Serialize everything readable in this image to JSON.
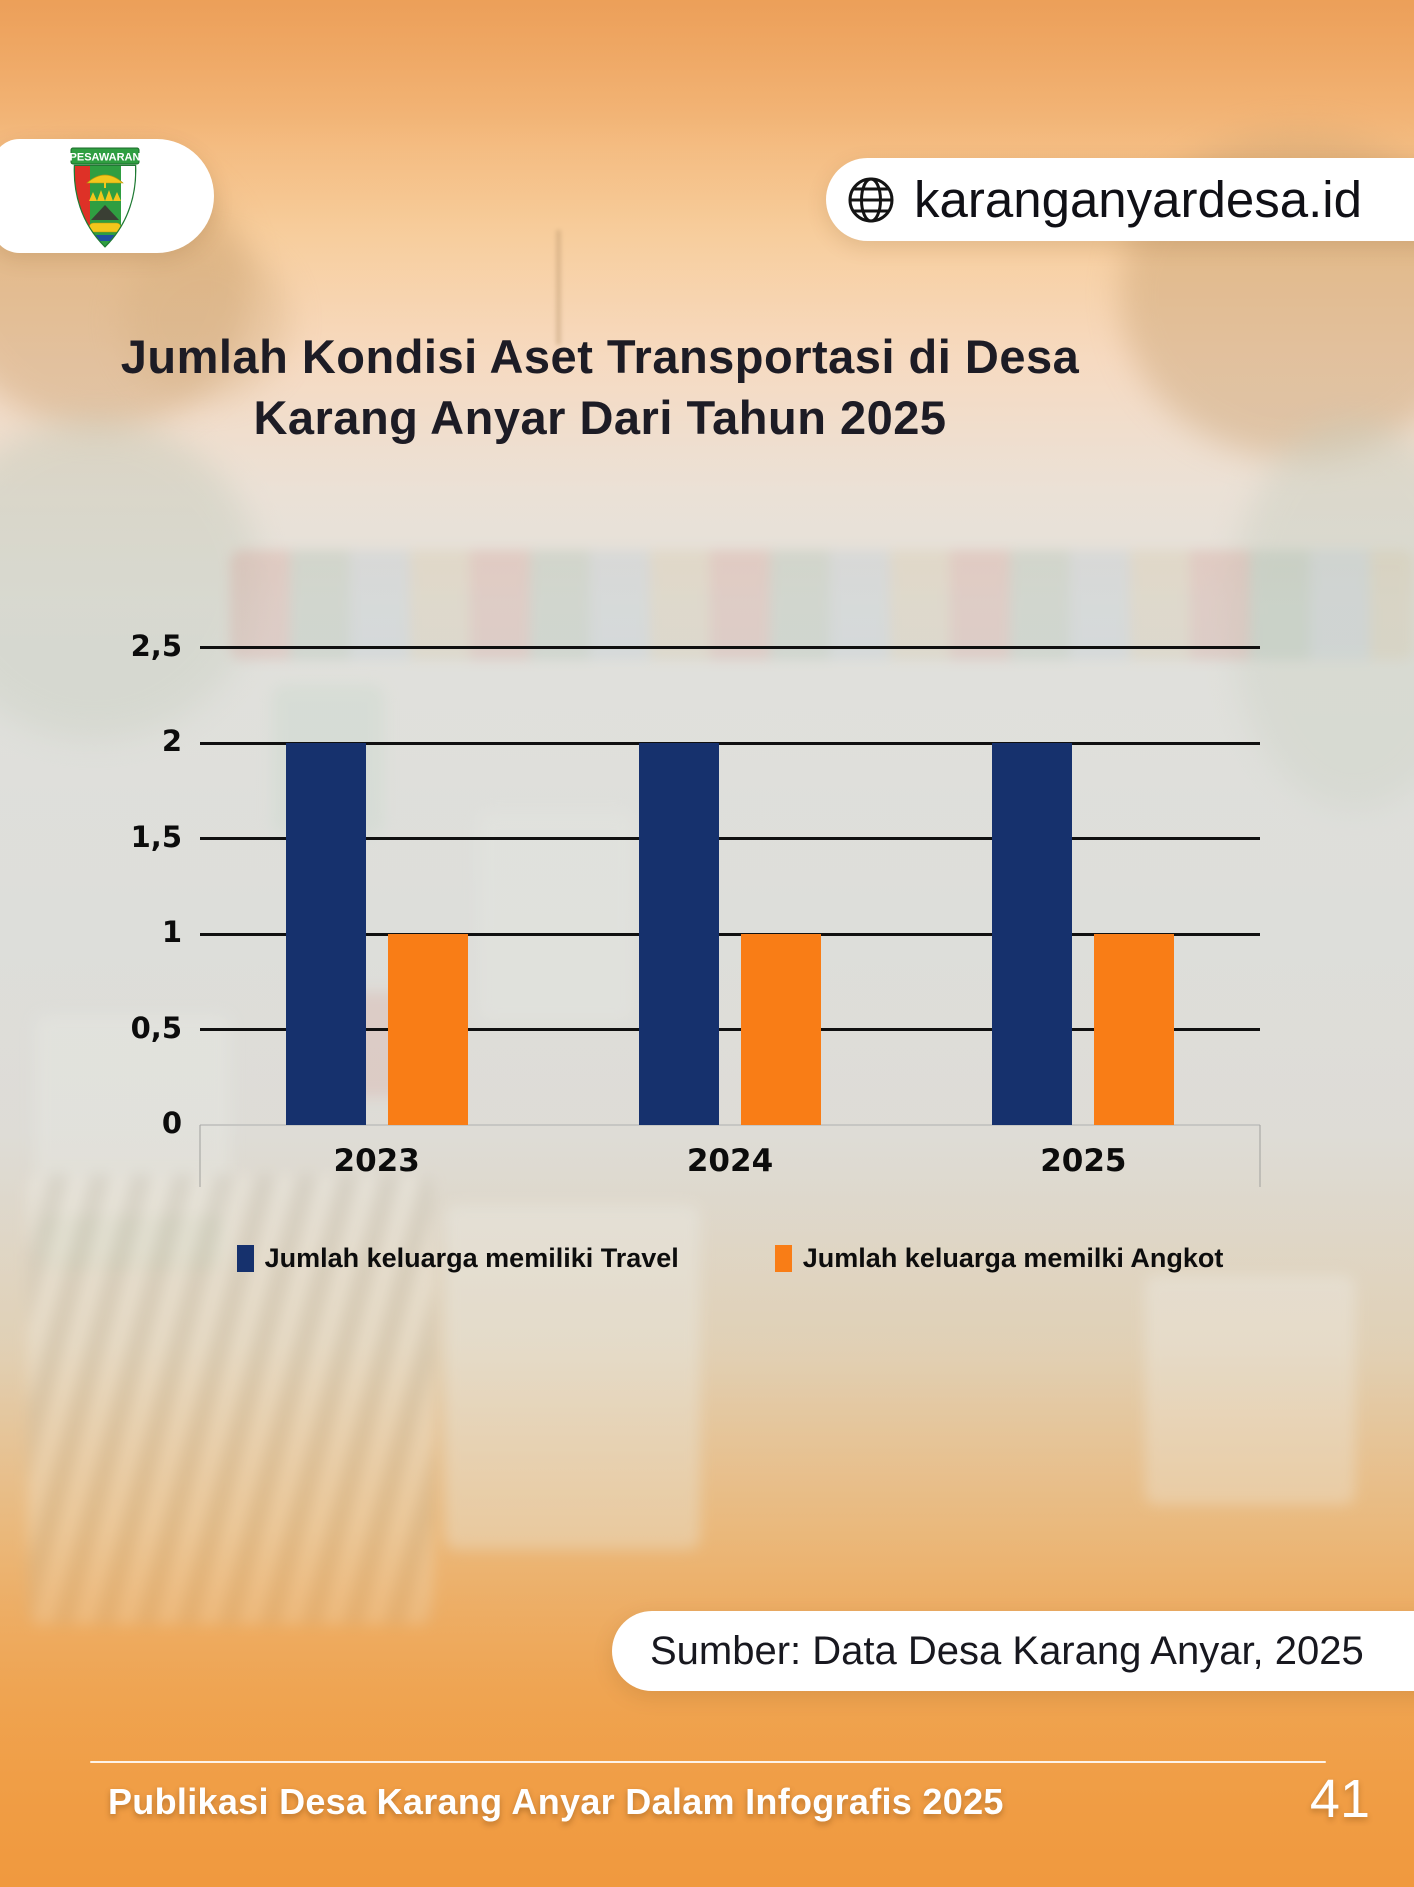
{
  "page": {
    "website": "karanganyardesa.id",
    "logo_text": "PESAWARAN",
    "title_line1": "Jumlah Kondisi Aset Transportasi di Desa",
    "title_line2": "Karang Anyar Dari Tahun 2025",
    "source": "Sumber: Data Desa Karang Anyar, 2025",
    "footer": "Publikasi Desa Karang Anyar Dalam Infografis 2025",
    "page_number": "41"
  },
  "icons": {
    "globe": "wireframe-globe glyph drawn as SVG",
    "logo": "Pesawaran regency crest (shield with umbrella, crown, mountain)"
  },
  "colors": {
    "travel_bar": "#16316d",
    "angkot_bar": "#f97d16",
    "ink": "#1d1c25",
    "gridline": "#101010",
    "footer_text": "#ffffff",
    "background_top": "#ec9f58",
    "background_bottom": "#ed9841"
  },
  "chart_data": {
    "type": "bar",
    "title": "Jumlah Kondisi Aset Transportasi di Desa Karang Anyar Dari Tahun 2025",
    "categories": [
      "2023",
      "2024",
      "2025"
    ],
    "series": [
      {
        "name": "Jumlah keluarga memiliki Travel",
        "color": "#16316d",
        "values": [
          2,
          2,
          2
        ]
      },
      {
        "name": "Jumlah keluarga memilki Angkot",
        "color": "#f97d16",
        "values": [
          1,
          1,
          1
        ]
      }
    ],
    "ylim": [
      0,
      2.5
    ],
    "yticks": [
      {
        "value": 0,
        "label": "0"
      },
      {
        "value": 0.5,
        "label": "0,5"
      },
      {
        "value": 1,
        "label": "1"
      },
      {
        "value": 1.5,
        "label": "1,5"
      },
      {
        "value": 2,
        "label": "2"
      },
      {
        "value": 2.5,
        "label": "2,5"
      }
    ],
    "grid": true,
    "legend_position": "bottom",
    "xlabel": "",
    "ylabel": ""
  }
}
